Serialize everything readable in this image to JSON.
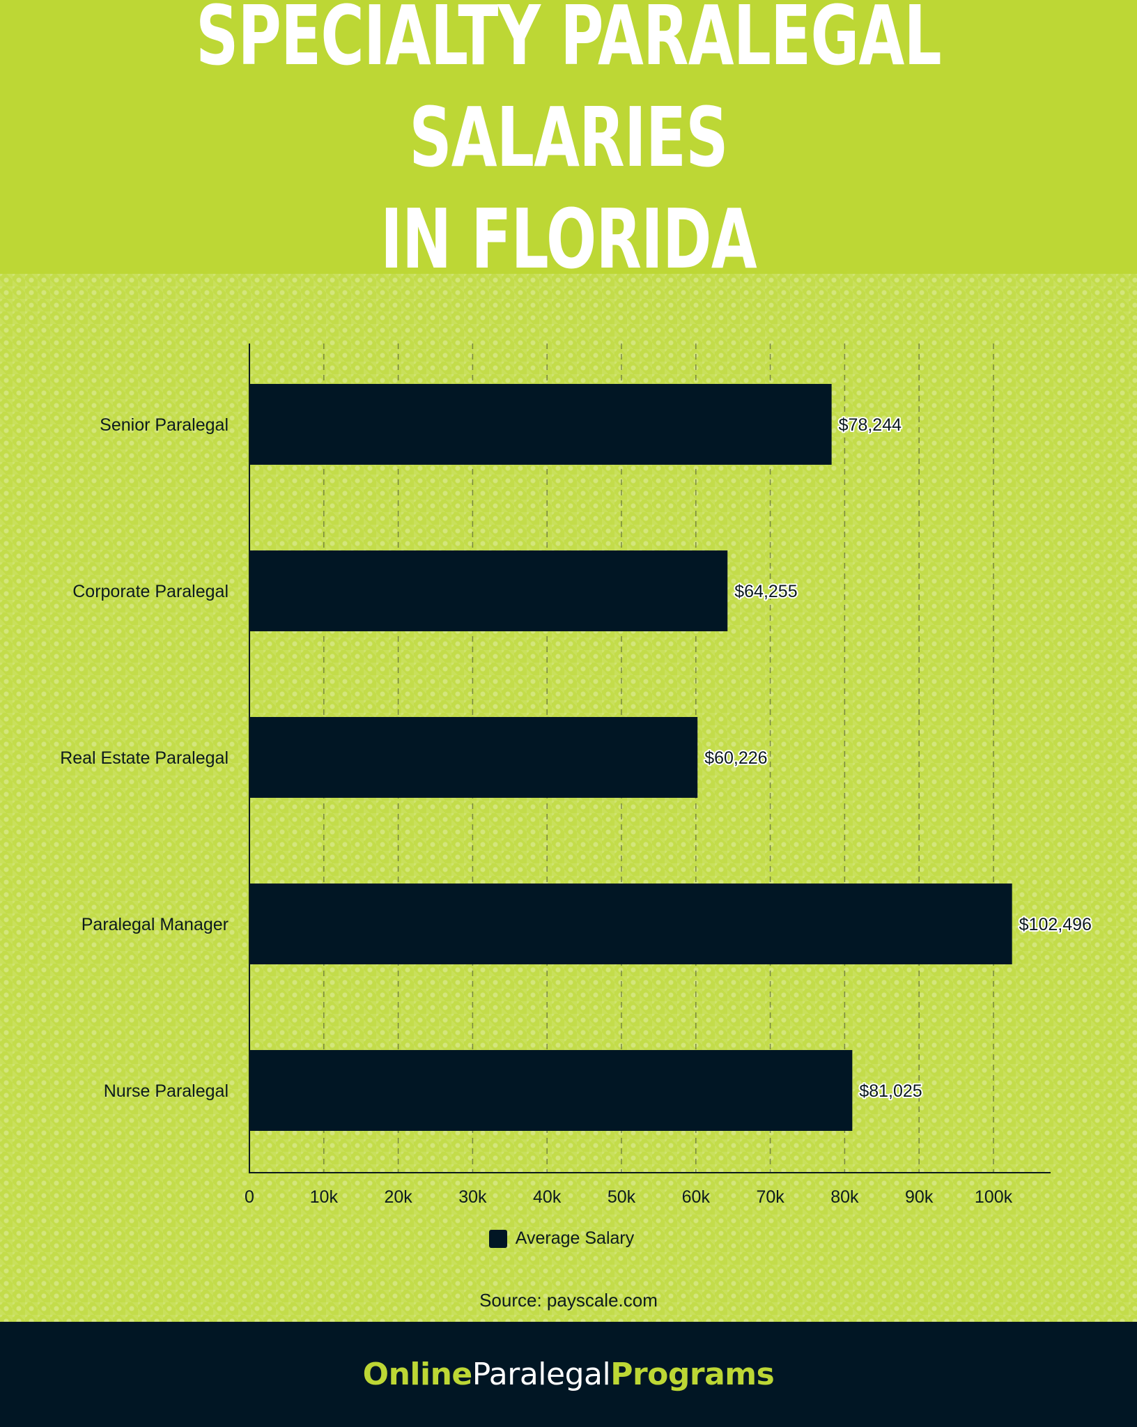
{
  "header": {
    "title": "Specialty Paralegal Salaries\nin Florida"
  },
  "chart_data": {
    "type": "bar",
    "orientation": "horizontal",
    "title": "Specialty Paralegal Salaries in Florida",
    "categories": [
      "Senior Paralegal",
      "Corporate Paralegal",
      "Real Estate Paralegal",
      "Paralegal Manager",
      "Nurse Paralegal"
    ],
    "series": [
      {
        "name": "Average Salary",
        "values": [
          78244,
          64255,
          60226,
          102496,
          81025
        ],
        "labels": [
          "$78,244",
          "$64,255",
          "$60,226",
          "$102,496",
          "$81,025"
        ],
        "color": "#011624"
      }
    ],
    "xlim": [
      0,
      108000
    ],
    "xticks": [
      0,
      10000,
      20000,
      30000,
      40000,
      50000,
      60000,
      70000,
      80000,
      90000,
      100000
    ],
    "xtick_labels": [
      "0",
      "10k",
      "20k",
      "30k",
      "40k",
      "50k",
      "60k",
      "70k",
      "80k",
      "90k",
      "100k"
    ],
    "xlabel": "",
    "ylabel": "",
    "grid": "vertical dashed",
    "legend": "bottom-center"
  },
  "legend": {
    "label": "Average Salary"
  },
  "source": {
    "text": "Source: payscale.com"
  },
  "footer": {
    "brand_online": "Online",
    "brand_paralegal": "Paralegal",
    "brand_programs": "Programs"
  },
  "colors": {
    "brand_green": "#bdd735",
    "dark_navy": "#011624",
    "text_dark": "#0c1a1e"
  }
}
